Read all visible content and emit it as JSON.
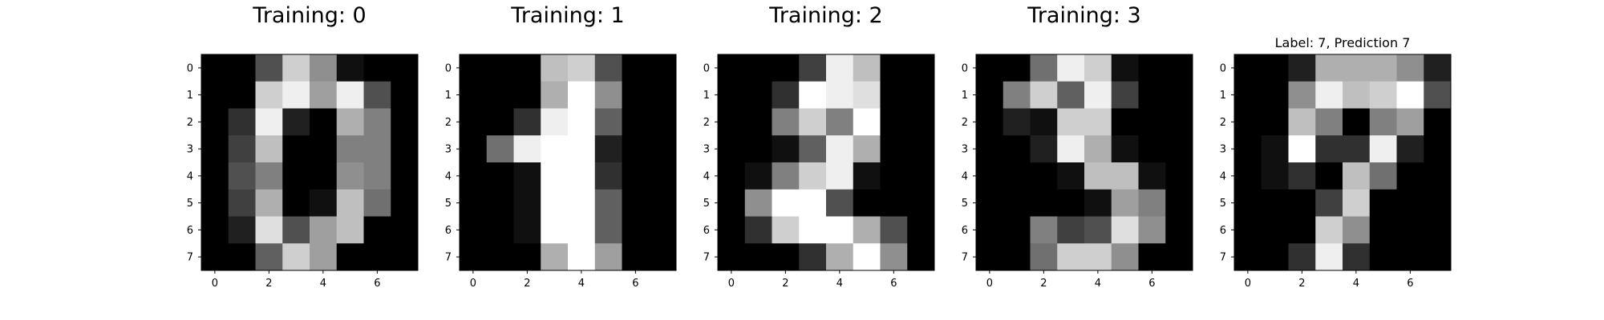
{
  "chart_data": [
    {
      "type": "heatmap",
      "title": "Training: 0",
      "title_size": "large",
      "colormap": "gray_r",
      "value_range": [
        0,
        16
      ],
      "x_ticks": [
        0,
        2,
        4,
        6
      ],
      "y_ticks": [
        0,
        1,
        2,
        3,
        4,
        5,
        6,
        7
      ],
      "grid": false,
      "pixels": [
        [
          0,
          0,
          5,
          13,
          9,
          1,
          0,
          0
        ],
        [
          0,
          0,
          13,
          15,
          10,
          15,
          5,
          0
        ],
        [
          0,
          3,
          15,
          2,
          0,
          11,
          8,
          0
        ],
        [
          0,
          4,
          12,
          0,
          0,
          8,
          8,
          0
        ],
        [
          0,
          5,
          8,
          0,
          0,
          9,
          8,
          0
        ],
        [
          0,
          4,
          11,
          0,
          1,
          12,
          7,
          0
        ],
        [
          0,
          2,
          14,
          5,
          10,
          12,
          0,
          0
        ],
        [
          0,
          0,
          6,
          13,
          10,
          0,
          0,
          0
        ]
      ]
    },
    {
      "type": "heatmap",
      "title": "Training: 1",
      "title_size": "large",
      "colormap": "gray_r",
      "value_range": [
        0,
        16
      ],
      "x_ticks": [
        0,
        2,
        4,
        6
      ],
      "y_ticks": [
        0,
        1,
        2,
        3,
        4,
        5,
        6,
        7
      ],
      "grid": false,
      "pixels": [
        [
          0,
          0,
          0,
          12,
          13,
          5,
          0,
          0
        ],
        [
          0,
          0,
          0,
          11,
          16,
          9,
          0,
          0
        ],
        [
          0,
          0,
          3,
          15,
          16,
          6,
          0,
          0
        ],
        [
          0,
          7,
          15,
          16,
          16,
          2,
          0,
          0
        ],
        [
          0,
          0,
          1,
          16,
          16,
          3,
          0,
          0
        ],
        [
          0,
          0,
          1,
          16,
          16,
          6,
          0,
          0
        ],
        [
          0,
          0,
          1,
          16,
          16,
          6,
          0,
          0
        ],
        [
          0,
          0,
          0,
          11,
          16,
          10,
          0,
          0
        ]
      ]
    },
    {
      "type": "heatmap",
      "title": "Training: 2",
      "title_size": "large",
      "colormap": "gray_r",
      "value_range": [
        0,
        16
      ],
      "x_ticks": [
        0,
        2,
        4,
        6
      ],
      "y_ticks": [
        0,
        1,
        2,
        3,
        4,
        5,
        6,
        7
      ],
      "grid": false,
      "pixels": [
        [
          0,
          0,
          0,
          4,
          15,
          12,
          0,
          0
        ],
        [
          0,
          0,
          3,
          16,
          15,
          14,
          0,
          0
        ],
        [
          0,
          0,
          8,
          13,
          8,
          16,
          0,
          0
        ],
        [
          0,
          0,
          1,
          6,
          15,
          11,
          0,
          0
        ],
        [
          0,
          1,
          8,
          13,
          15,
          1,
          0,
          0
        ],
        [
          0,
          9,
          16,
          16,
          5,
          0,
          0,
          0
        ],
        [
          0,
          3,
          13,
          16,
          16,
          11,
          5,
          0
        ],
        [
          0,
          0,
          0,
          3,
          11,
          16,
          9,
          0
        ]
      ]
    },
    {
      "type": "heatmap",
      "title": "Training: 3",
      "title_size": "large",
      "colormap": "gray_r",
      "value_range": [
        0,
        16
      ],
      "x_ticks": [
        0,
        2,
        4,
        6
      ],
      "y_ticks": [
        0,
        1,
        2,
        3,
        4,
        5,
        6,
        7
      ],
      "grid": false,
      "pixels": [
        [
          0,
          0,
          7,
          15,
          13,
          1,
          0,
          0
        ],
        [
          0,
          8,
          13,
          6,
          15,
          4,
          0,
          0
        ],
        [
          0,
          2,
          1,
          13,
          13,
          0,
          0,
          0
        ],
        [
          0,
          0,
          2,
          15,
          11,
          1,
          0,
          0
        ],
        [
          0,
          0,
          0,
          1,
          12,
          12,
          1,
          0
        ],
        [
          0,
          0,
          0,
          0,
          1,
          10,
          8,
          0
        ],
        [
          0,
          0,
          8,
          4,
          5,
          14,
          9,
          0
        ],
        [
          0,
          0,
          7,
          13,
          13,
          9,
          0,
          0
        ]
      ]
    },
    {
      "type": "heatmap",
      "title": "Label: 7, Prediction 7",
      "title_size": "small",
      "colormap": "gray_r",
      "value_range": [
        0,
        16
      ],
      "x_ticks": [
        0,
        2,
        4,
        6
      ],
      "y_ticks": [
        0,
        1,
        2,
        3,
        4,
        5,
        6,
        7
      ],
      "grid": false,
      "pixels": [
        [
          0,
          0,
          2,
          11,
          11,
          11,
          9,
          2
        ],
        [
          0,
          0,
          9,
          15,
          12,
          13,
          16,
          5
        ],
        [
          0,
          0,
          12,
          8,
          0,
          8,
          10,
          0
        ],
        [
          0,
          1,
          16,
          3,
          3,
          15,
          2,
          0
        ],
        [
          0,
          1,
          3,
          0,
          12,
          7,
          0,
          0
        ],
        [
          0,
          0,
          0,
          4,
          13,
          0,
          0,
          0
        ],
        [
          0,
          0,
          0,
          13,
          9,
          0,
          0,
          0
        ],
        [
          0,
          0,
          3,
          15,
          3,
          0,
          0,
          0
        ]
      ]
    }
  ]
}
